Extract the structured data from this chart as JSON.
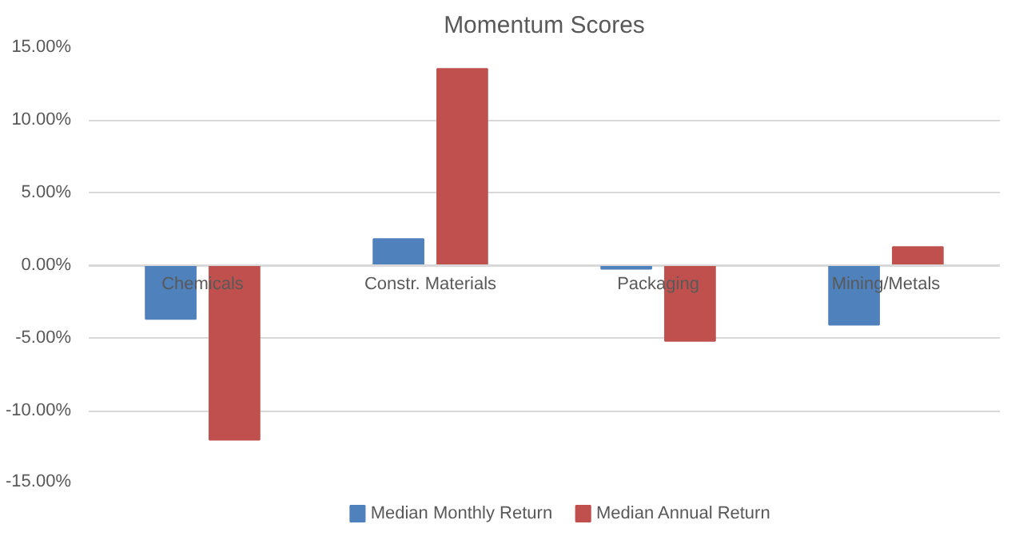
{
  "chart_data": {
    "type": "bar",
    "title": "Momentum Scores",
    "categories": [
      "Chemicals",
      "Constr. Materials",
      "Packaging",
      "Mining/Metals"
    ],
    "series": [
      {
        "name": "Median Monthly Return",
        "color": "#4f81bd",
        "values": [
          -3.7,
          1.8,
          -0.25,
          -4.1
        ]
      },
      {
        "name": "Median Annual Return",
        "color": "#c0504d",
        "values": [
          -12.0,
          13.5,
          -5.2,
          1.25
        ]
      }
    ],
    "ylim": [
      -15,
      15
    ],
    "yticks": [
      {
        "value": -15,
        "label": "-15.00%"
      },
      {
        "value": -10,
        "label": "-10.00%"
      },
      {
        "value": -5,
        "label": "-5.00%"
      },
      {
        "value": 0,
        "label": "0.00%"
      },
      {
        "value": 5,
        "label": "5.00%"
      },
      {
        "value": 10,
        "label": "10.00%"
      },
      {
        "value": 15,
        "label": "15.00%"
      }
    ],
    "grid": "y",
    "legend": "bottom"
  }
}
